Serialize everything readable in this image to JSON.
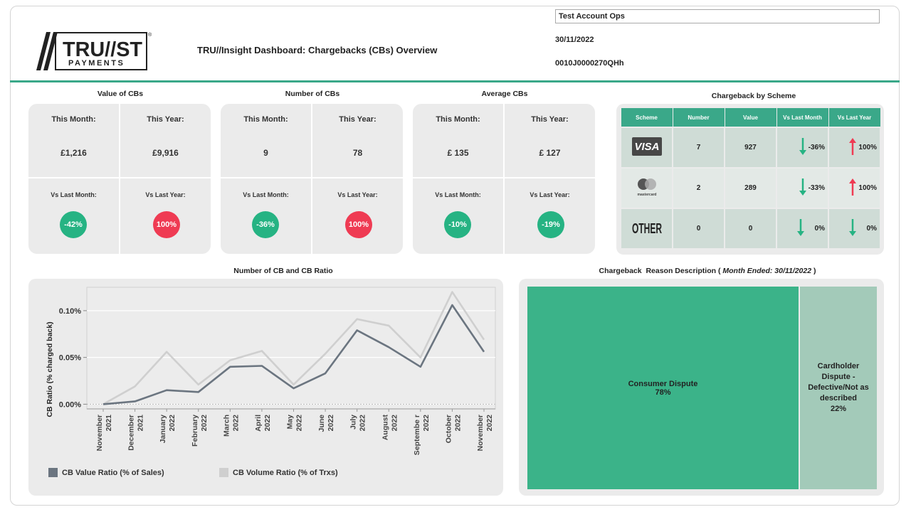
{
  "header": {
    "logo_text_main": "TRU//ST",
    "logo_text_sub": "PAYMENTS",
    "title": "TRU//Insight Dashboard: Chargebacks (CBs) Overview",
    "account": "Test Account Ops",
    "date": "30/11/2022",
    "account_id": "0010J0000270QHh"
  },
  "kpis": [
    {
      "title": "Value of CBs",
      "this_month_label": "This Month:",
      "this_month": "£1,216",
      "this_year_label": "This Year:",
      "this_year": "£9,916",
      "vs_month_label": "Vs Last Month:",
      "vs_month": "-42%",
      "vs_year_label": "Vs Last Year:",
      "vs_year": "100%"
    },
    {
      "title": "Number of CBs",
      "this_month_label": "This Month:",
      "this_month": "9",
      "this_year_label": "This Year:",
      "this_year": "78",
      "vs_month_label": "Vs Last Month:",
      "vs_month": "-36%",
      "vs_year_label": "Vs Last Year:",
      "vs_year": "100%"
    },
    {
      "title": "Average CBs",
      "this_month_label": "This Month:",
      "this_month": "£ 135",
      "this_year_label": "This Year:",
      "this_year": "£ 127",
      "vs_month_label": "Vs Last Month:",
      "vs_month": "-10%",
      "vs_year_label": "Vs Last Year:",
      "vs_year": "-19%"
    }
  ],
  "kpi_colors": {
    "good": "#26b383",
    "bad": "#ef3b53"
  },
  "scheme": {
    "title": "Chargeback by Scheme",
    "headers": [
      "Scheme",
      "Number",
      "Value",
      "Vs Last Month",
      "Vs Last Year"
    ],
    "rows": [
      {
        "scheme": "VISA",
        "number": "7",
        "value": "927",
        "vs_month": "-36%",
        "vs_month_dir": "down",
        "vs_year": "100%",
        "vs_year_dir": "up"
      },
      {
        "scheme": "mastercard",
        "number": "2",
        "value": "289",
        "vs_month": "-33%",
        "vs_month_dir": "down",
        "vs_year": "100%",
        "vs_year_dir": "up"
      },
      {
        "scheme": "OTHER",
        "number": "0",
        "value": "0",
        "vs_month": "0%",
        "vs_month_dir": "down",
        "vs_year": "0%",
        "vs_year_dir": "down"
      }
    ]
  },
  "line_chart": {
    "title": "Number of CB and CB Ratio",
    "legend_value": "CB Value Ratio (% of Sales)",
    "legend_volume": "CB Volume Ratio (% of Trxs)"
  },
  "chart_data": {
    "type": "line",
    "title": "Number of CB and CB Ratio",
    "ylabel": "CB Ratio (% charged back)",
    "xlabel": "",
    "x": [
      "November 2021",
      "December 2021",
      "January 2022",
      "February 2022",
      "March 2022",
      "April 2022",
      "May 2022",
      "June 2022",
      "July 2022",
      "August 2022",
      "Septembe r 2022",
      "October 2022",
      "November 2022"
    ],
    "series": [
      {
        "name": "CB Value Ratio (% of Sales)",
        "color": "#6b7580",
        "values": [
          0.0,
          0.003,
          0.015,
          0.013,
          0.04,
          0.041,
          0.017,
          0.033,
          0.079,
          0.061,
          0.04,
          0.106,
          0.056
        ]
      },
      {
        "name": "CB Volume Ratio (% of Trxs)",
        "color": "#cfcfcf",
        "values": [
          0.0,
          0.019,
          0.056,
          0.021,
          0.047,
          0.057,
          0.021,
          0.054,
          0.091,
          0.084,
          0.05,
          0.12,
          0.069
        ]
      }
    ],
    "yticks": [
      "0.00%",
      "0.05%",
      "0.10%"
    ],
    "ytick_values": [
      0,
      0.05,
      0.1
    ],
    "ylim": [
      -0.005,
      0.125
    ],
    "grid": true,
    "legend": "bottom"
  },
  "treemap": {
    "title_prefix": "Chargeback  Reason Description ( ",
    "title_italic": "Month Ended: 30/11/2022",
    "title_suffix": " )",
    "items": [
      {
        "label": "Consumer Dispute",
        "pct": "78%",
        "share": 0.78,
        "color": "#3bb389"
      },
      {
        "label": "Cardholder Dispute - Defective/Not as described",
        "pct": "22%",
        "share": 0.22,
        "color": "#a3cab9"
      }
    ]
  }
}
